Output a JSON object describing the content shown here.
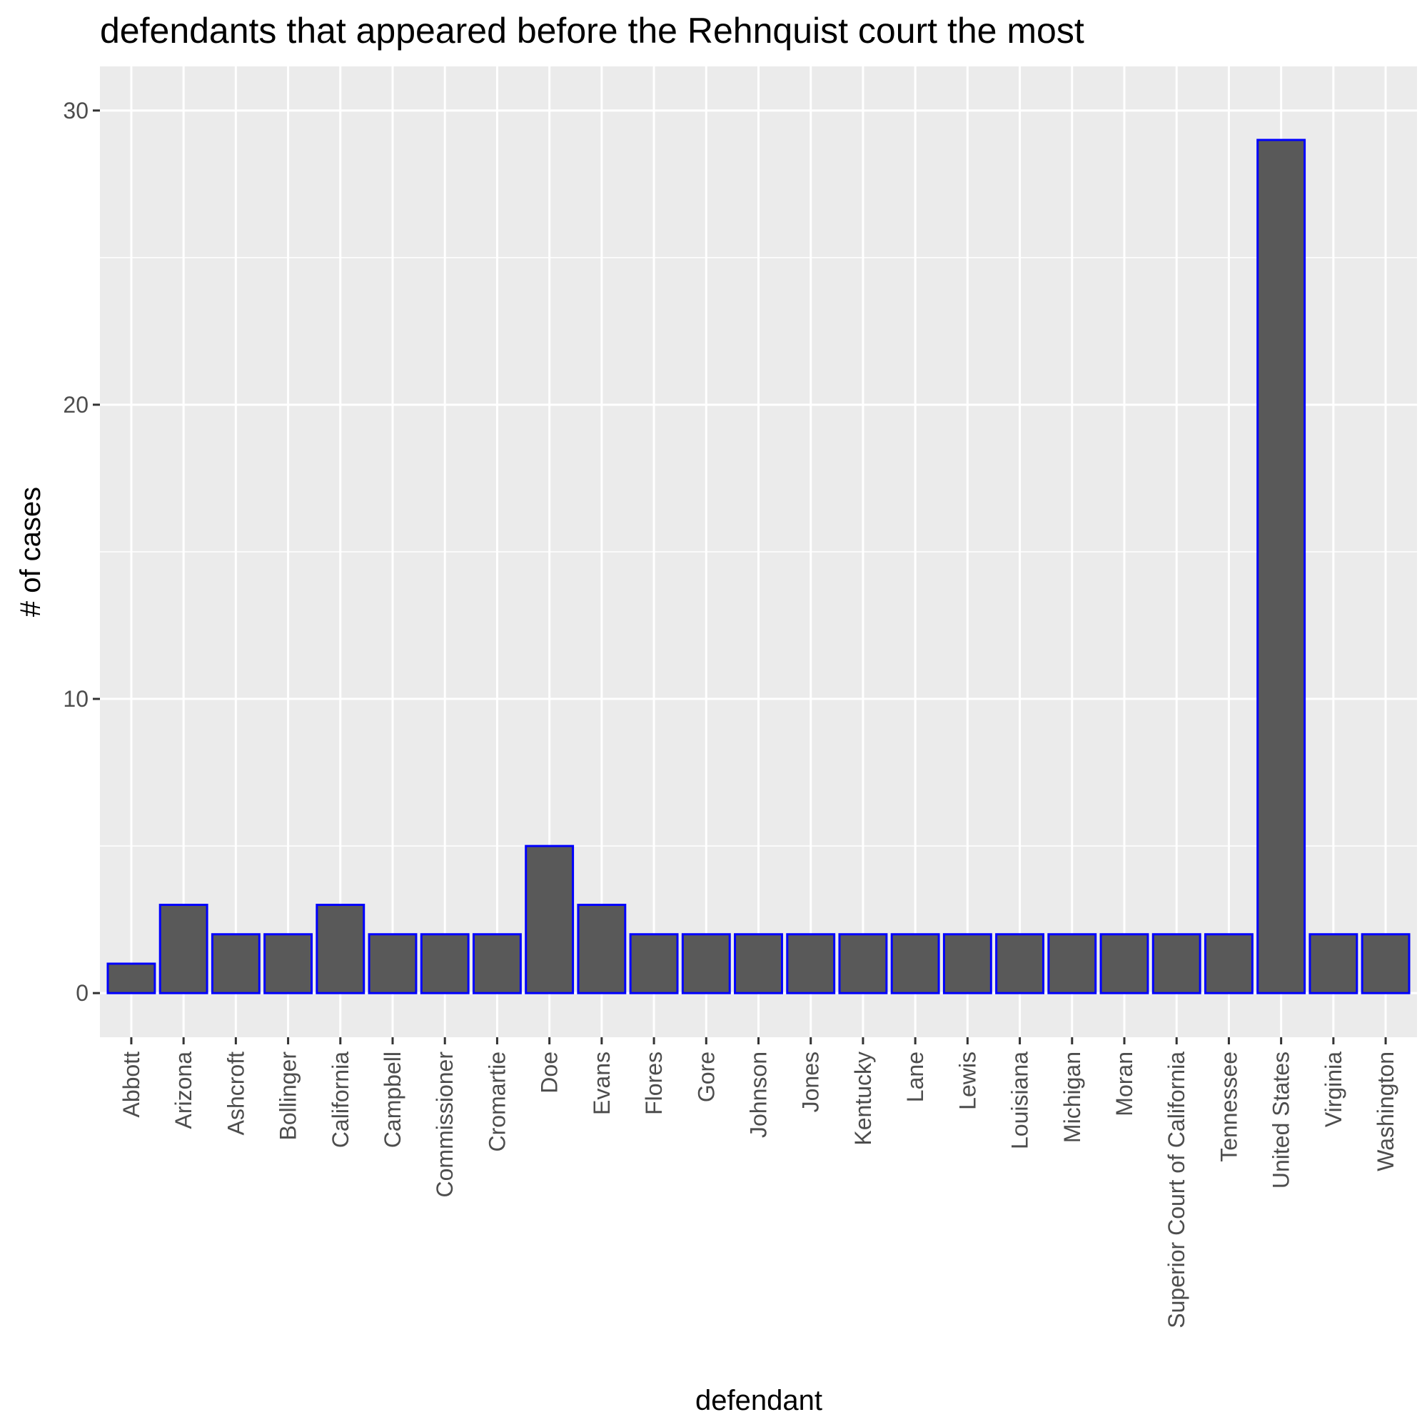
{
  "chart_data": {
    "type": "bar",
    "title": "defendants that appeared before the Rehnquist court the most",
    "xlabel": "defendant",
    "ylabel": "# of cases",
    "ylim": [
      0,
      30
    ],
    "yticks": [
      0,
      10,
      20,
      30
    ],
    "grid": true,
    "bar_fill": "#595959",
    "bar_outline": "#0000ff",
    "panel_background": "#ebebeb",
    "categories": [
      "Abbott",
      "Arizona",
      "Ashcroft",
      "Bollinger",
      "California",
      "Campbell",
      "Commissioner",
      "Cromartie",
      "Doe",
      "Evans",
      "Flores",
      "Gore",
      "Johnson",
      "Jones",
      "Kentucky",
      "Lane",
      "Lewis",
      "Louisiana",
      "Michigan",
      "Moran",
      "Superior Court of California",
      "Tennessee",
      "United States",
      "Virginia",
      "Washington"
    ],
    "values": [
      1,
      3,
      2,
      2,
      3,
      2,
      2,
      2,
      5,
      3,
      2,
      2,
      2,
      2,
      2,
      2,
      2,
      2,
      2,
      2,
      2,
      2,
      29,
      2,
      2
    ]
  }
}
